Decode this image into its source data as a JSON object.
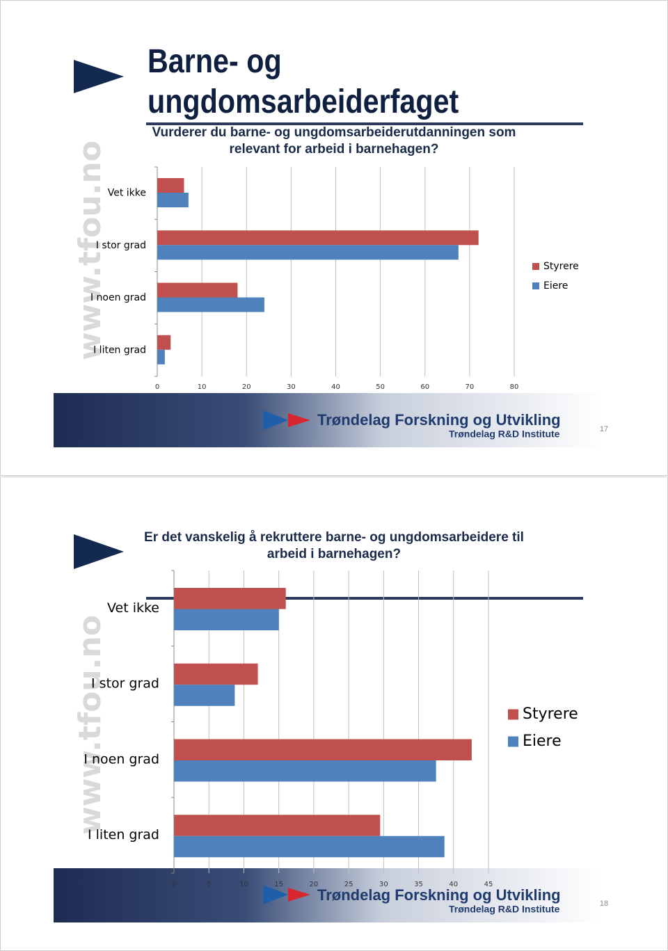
{
  "slides": [
    {
      "heading": "Barne- og ungdomsarbeiderfaget",
      "watermark": "www.tfou.no",
      "logo_title": "Trøndelag Forskning og Utvikling",
      "logo_subtitle": "Trøndelag R&D Institute",
      "page_number": 17
    },
    {
      "watermark": "www.tfou.no",
      "logo_title": "Trøndelag Forskning og Utvikling",
      "logo_subtitle": "Trøndelag R&D Institute",
      "page_number": 18
    }
  ],
  "chart_data": [
    {
      "type": "bar",
      "orientation": "horizontal",
      "title": "Vurderer du barne- og ungdomsarbeiderutdanningen som relevant for arbeid i barnehagen?",
      "categories": [
        "Vet ikke",
        "I stor grad",
        "I noen grad",
        "I liten grad"
      ],
      "series": [
        {
          "name": "Styrere",
          "color": "#c0504d",
          "values": [
            6,
            72,
            18,
            3
          ]
        },
        {
          "name": "Eiere",
          "color": "#4f81bd",
          "values": [
            7,
            67.5,
            24,
            1.7
          ]
        }
      ],
      "xlim": [
        0,
        80
      ],
      "xticks": [
        0,
        10,
        20,
        30,
        40,
        50,
        60,
        70,
        80
      ],
      "grid": true,
      "legend": "right"
    },
    {
      "type": "bar",
      "orientation": "horizontal",
      "title": "Er det vanskelig å rekruttere barne- og ungdomsarbeidere til arbeid i barnehagen?",
      "categories": [
        "Vet ikke",
        "I stor grad",
        "I noen grad",
        "I liten grad"
      ],
      "series": [
        {
          "name": "Styrere",
          "color": "#c0504d",
          "values": [
            16,
            12,
            42.6,
            29.5
          ]
        },
        {
          "name": "Eiere",
          "color": "#4f81bd",
          "values": [
            15,
            8.7,
            37.5,
            38.7
          ]
        }
      ],
      "xlim": [
        0,
        45
      ],
      "xticks": [
        0,
        5,
        10,
        15,
        20,
        25,
        30,
        35,
        40,
        45
      ],
      "grid": true,
      "legend": "right"
    }
  ]
}
